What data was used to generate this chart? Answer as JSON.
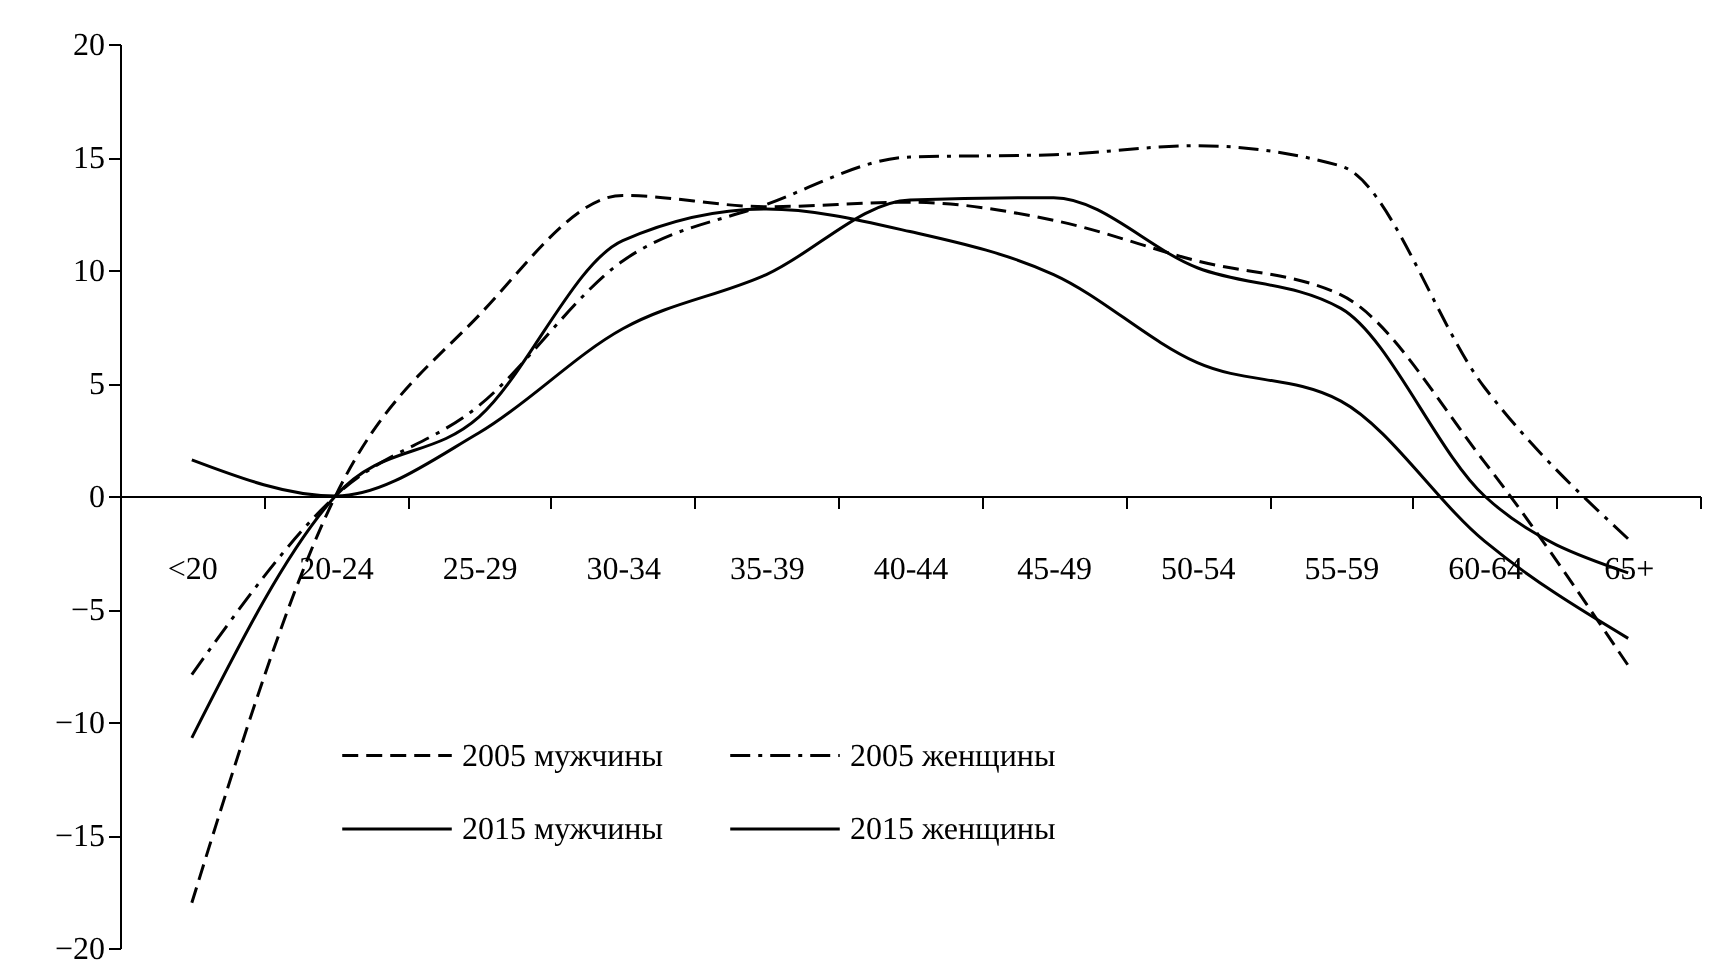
{
  "chart_data": {
    "type": "line",
    "categories": [
      "<20",
      "20-24",
      "25-29",
      "30-34",
      "35-39",
      "40-44",
      "45-49",
      "50-54",
      "55-59",
      "60-64",
      "65+"
    ],
    "series": [
      {
        "name": "2005 мужчины",
        "color": "#000000",
        "line_style": "dashed",
        "values": [
          -18,
          0,
          8,
          13.3,
          12.8,
          13,
          12.2,
          10.4,
          8.9,
          1.5,
          -7.5
        ]
      },
      {
        "name": "2005 женщины",
        "color": "#000000",
        "line_style": "dashdot",
        "values": [
          -7.9,
          0,
          4,
          10.4,
          12.9,
          15,
          15.1,
          15.5,
          14.6,
          4.8,
          -1.9
        ]
      },
      {
        "name": "2015 мужчины",
        "color": "#000000",
        "line_style": "solid",
        "values": [
          -10.7,
          0,
          3.5,
          11.3,
          12.7,
          11.7,
          9.8,
          5.9,
          4.2,
          -2,
          -6.3
        ]
      },
      {
        "name": "2015 женщины",
        "color": "#000000",
        "line_style": "solid",
        "values": [
          1.6,
          0,
          2.8,
          7.4,
          9.8,
          13.1,
          13.2,
          10.1,
          8.3,
          0,
          -3.4
        ]
      }
    ],
    "ylim": [
      -20,
      20
    ],
    "yticks": [
      -20,
      -15,
      -10,
      -5,
      0,
      5,
      10,
      15,
      20
    ],
    "grid": false,
    "legend": "bottom",
    "marker": "none"
  }
}
